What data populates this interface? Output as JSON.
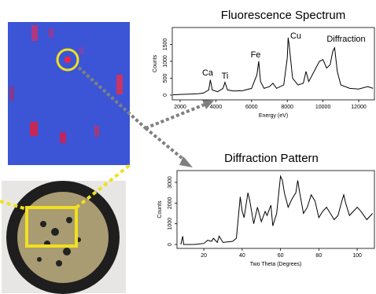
{
  "chart_data": [
    {
      "type": "line",
      "title": "Fluorescence Spectrum",
      "xlabel": "Energy (eV)",
      "ylabel": "Counts",
      "x": [
        1600,
        2000,
        2500,
        3000,
        3300,
        3600,
        3690,
        3800,
        4100,
        4400,
        4510,
        4650,
        5000,
        5500,
        6000,
        6300,
        6400,
        6500,
        6700,
        7000,
        7200,
        7400,
        7800,
        8000,
        8050,
        8100,
        8300,
        8600,
        8900,
        9050,
        9200,
        9500,
        9800,
        10000,
        10200,
        10400,
        10550,
        10650,
        10800,
        11000,
        11500,
        12000,
        12500,
        12800
      ],
      "values": [
        10,
        20,
        30,
        40,
        60,
        150,
        450,
        150,
        100,
        200,
        380,
        150,
        120,
        130,
        200,
        600,
        1000,
        400,
        200,
        250,
        350,
        200,
        300,
        1100,
        1700,
        1500,
        500,
        300,
        350,
        700,
        400,
        700,
        1000,
        1050,
        800,
        900,
        1300,
        1400,
        700,
        300,
        200,
        180,
        250,
        200
      ],
      "color": "#000000",
      "xlim": [
        1560,
        12880
      ],
      "ylim": [
        -140,
        2000
      ],
      "xticks": [
        2000,
        4000,
        6000,
        8000,
        10000,
        12000
      ],
      "yticks": [
        0,
        500,
        1000,
        1500
      ],
      "annotations": [
        "Ca",
        "Ti",
        "Fe",
        "Cu",
        "Diffraction"
      ]
    },
    {
      "type": "line",
      "title": "Diffraction Pattern",
      "xlabel": "Two Theta (Degrees)",
      "ylabel": "Counts",
      "x": [
        8,
        9,
        9.5,
        15,
        20,
        22,
        24,
        25,
        27,
        28,
        30,
        35,
        37,
        39,
        40,
        41,
        43,
        44,
        46,
        48,
        50,
        52,
        53,
        55,
        56,
        58,
        60,
        61,
        62,
        64,
        66,
        68,
        69,
        70,
        72,
        74,
        76,
        78,
        80,
        82,
        84,
        86,
        88,
        90,
        92,
        93,
        94,
        96,
        98,
        100,
        102,
        105,
        108
      ],
      "values": [
        0,
        400,
        0,
        0,
        50,
        200,
        150,
        300,
        100,
        400,
        100,
        150,
        300,
        2300,
        1600,
        1300,
        2500,
        2100,
        1000,
        1800,
        1100,
        1600,
        1400,
        1900,
        900,
        1500,
        3300,
        3100,
        2500,
        1800,
        2200,
        2500,
        3100,
        2500,
        1500,
        1800,
        2400,
        2100,
        1300,
        1600,
        1800,
        1500,
        1200,
        1400,
        2100,
        2400,
        2000,
        1400,
        1600,
        1800,
        1600,
        1200,
        1500
      ],
      "color": "#000000",
      "xlim": [
        6,
        109
      ],
      "ylim": [
        -190,
        3570
      ],
      "xticks": [
        20,
        40,
        60,
        80,
        100
      ],
      "yticks": [
        0,
        1000,
        2000,
        3000
      ]
    }
  ]
}
